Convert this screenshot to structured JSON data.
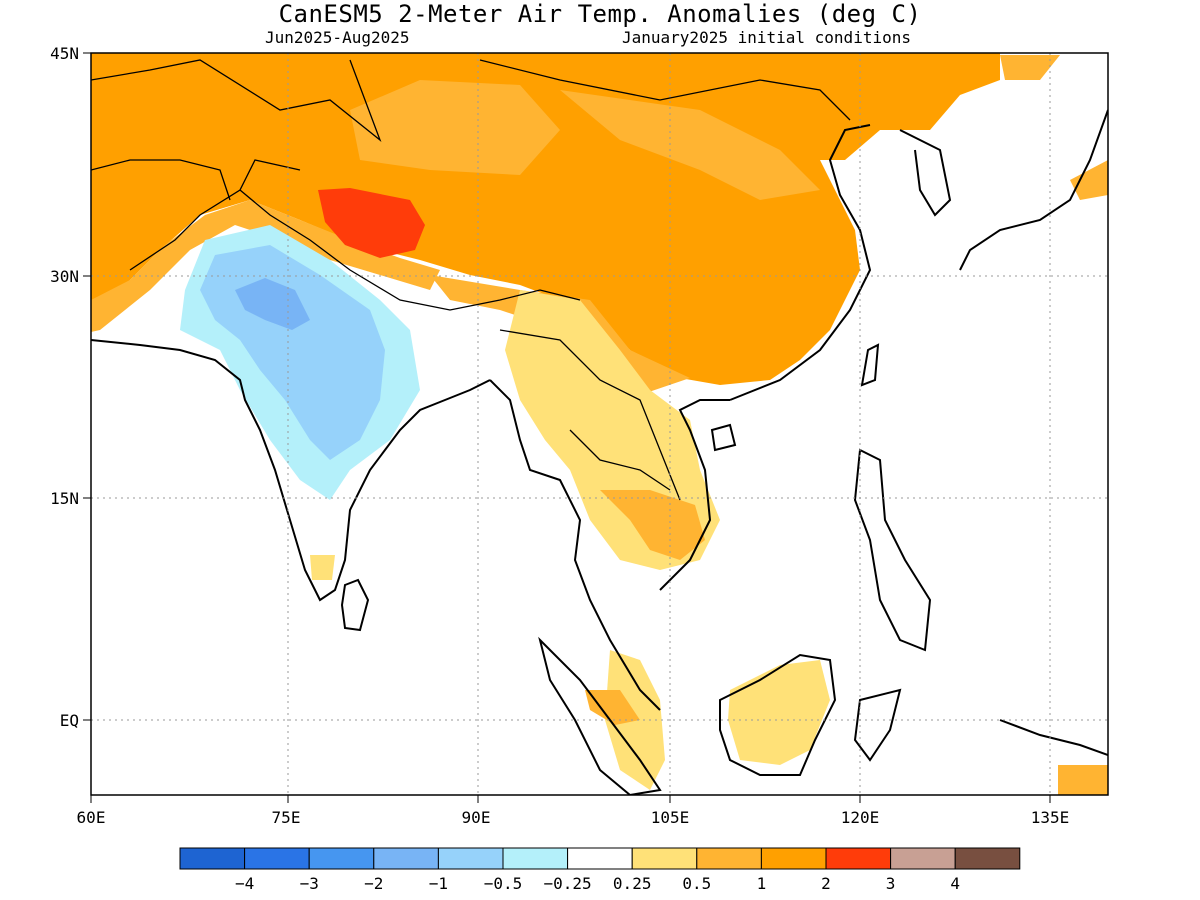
{
  "title": "CanESM5 2-Meter Air Temp. Anomalies (deg C)",
  "period": "Jun2025-Aug2025",
  "init": "January2025 initial conditions",
  "lon_ticks": [
    "60E",
    "75E",
    "90E",
    "105E",
    "120E",
    "135E"
  ],
  "lat_ticks": [
    "45N",
    "30N",
    "15N",
    "EQ"
  ],
  "extent": {
    "lon_min": 60,
    "lon_max": 137,
    "lat_min": -5,
    "lat_max": 45
  },
  "colorbar": {
    "labels": [
      "-4",
      "-3",
      "-2",
      "-1",
      "-0.5",
      "-0.25",
      "0.25",
      "0.5",
      "1",
      "2",
      "3",
      "4"
    ],
    "colors": [
      "#1e64d2",
      "#2a74e6",
      "#4696f0",
      "#78b4f5",
      "#96d2fa",
      "#b4f0fa",
      "#ffffff",
      "#ffe178",
      "#ffb432",
      "#ffa000",
      "#ff3c0a",
      "#c8a094",
      "#784f40"
    ]
  }
}
